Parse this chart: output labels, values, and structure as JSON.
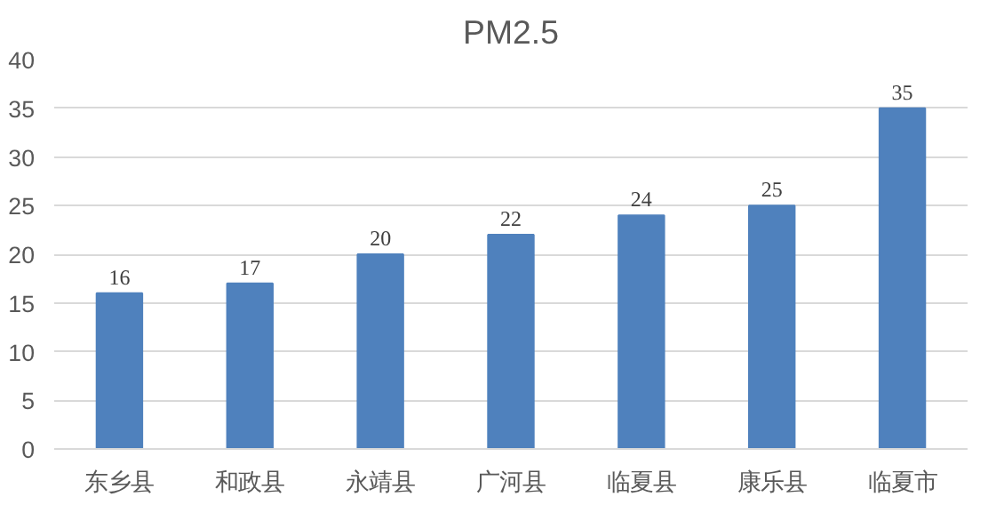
{
  "chart_data": {
    "type": "bar",
    "title": "PM2.5",
    "categories": [
      "东乡县",
      "和政县",
      "永靖县",
      "广河县",
      "临夏县",
      "康乐县",
      "临夏市"
    ],
    "values": [
      16,
      17,
      20,
      22,
      24,
      25,
      35
    ],
    "color": "#4f81bd",
    "ylim": [
      0,
      40
    ],
    "yticks": [
      0,
      5,
      10,
      15,
      20,
      25,
      30,
      35,
      40
    ],
    "grid": "y",
    "data_labels": true
  }
}
